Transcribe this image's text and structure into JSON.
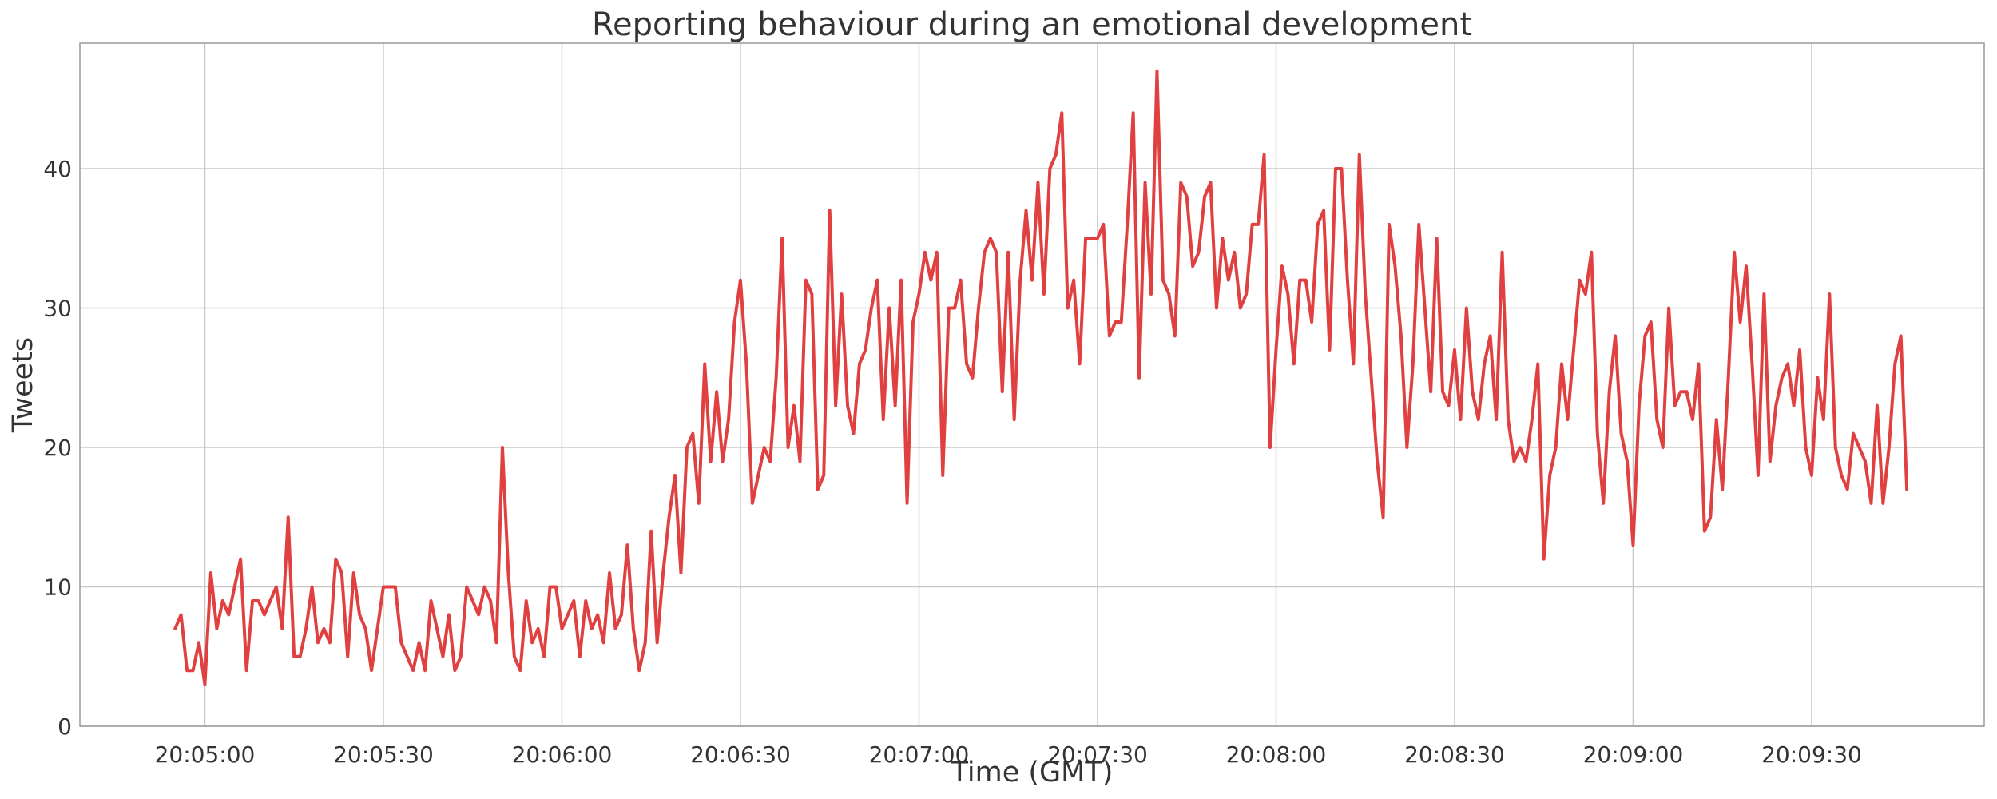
{
  "chart_data": {
    "type": "line",
    "title": "Reporting behaviour during an emotional development",
    "xlabel": "Time (GMT)",
    "ylabel": "Tweets",
    "ylim": [
      0,
      49
    ],
    "xlim": [
      "20:04:39",
      "20:09:59"
    ],
    "x_start": "20:04:55",
    "x_step_seconds": 1,
    "grid": true,
    "series_color": "#e04040",
    "xticks": [
      {
        "t": "20:05:00",
        "label": "20:05:00"
      },
      {
        "t": "20:05:30",
        "label": "20:05:30"
      },
      {
        "t": "20:06:00",
        "label": "20:06:00"
      },
      {
        "t": "20:06:30",
        "label": "20:06:30"
      },
      {
        "t": "20:07:00",
        "label": "20:07:00"
      },
      {
        "t": "20:07:30",
        "label": "20:07:30"
      },
      {
        "t": "20:08:00",
        "label": "20:08:00"
      },
      {
        "t": "20:08:30",
        "label": "20:08:30"
      },
      {
        "t": "20:09:00",
        "label": "20:09:00"
      },
      {
        "t": "20:09:30",
        "label": "20:09:30"
      }
    ],
    "yticks": [
      {
        "v": 0,
        "label": "0"
      },
      {
        "v": 10,
        "label": "10"
      },
      {
        "v": 20,
        "label": "20"
      },
      {
        "v": 30,
        "label": "30"
      },
      {
        "v": 40,
        "label": "40"
      }
    ],
    "series": [
      {
        "values": [
          7,
          8,
          4,
          4,
          6,
          3,
          11,
          7,
          9,
          8,
          10,
          12,
          4,
          9,
          9,
          8,
          9,
          10,
          7,
          15,
          5,
          5,
          7,
          10,
          6,
          7,
          6,
          12,
          11,
          5,
          11,
          8,
          7,
          4,
          7,
          10,
          10,
          10,
          6,
          5,
          4,
          6,
          4,
          9,
          7,
          5,
          8,
          4,
          5,
          10,
          9,
          8,
          10,
          9,
          6,
          20,
          11,
          5,
          4,
          9,
          6,
          7,
          5,
          10,
          10,
          7,
          8,
          9,
          5,
          9,
          7,
          8,
          6,
          11,
          7,
          8,
          13,
          7,
          4,
          6,
          14,
          6,
          11,
          15,
          18,
          11,
          20,
          21,
          16,
          26,
          19,
          24,
          19,
          22,
          29,
          32,
          26,
          16,
          18,
          20,
          19,
          25,
          35,
          20,
          23,
          19,
          32,
          31,
          17,
          18,
          37,
          23,
          31,
          23,
          21,
          26,
          27,
          30,
          32,
          22,
          30,
          23,
          32,
          16,
          29,
          31,
          34,
          32,
          34,
          18,
          30,
          30,
          32,
          26,
          25,
          30,
          34,
          35,
          34,
          24,
          34,
          22,
          32,
          37,
          32,
          39,
          31,
          40,
          41,
          44,
          30,
          32,
          26,
          35,
          35,
          35,
          36,
          28,
          29,
          29,
          36,
          44,
          25,
          39,
          31,
          47,
          32,
          31,
          28,
          39,
          38,
          33,
          34,
          38,
          39,
          30,
          35,
          32,
          34,
          30,
          31,
          36,
          36,
          41,
          20,
          27,
          33,
          31,
          26,
          32,
          32,
          29,
          36,
          37,
          27,
          40,
          40,
          32,
          26,
          41,
          31,
          25,
          19,
          15,
          36,
          33,
          28,
          20,
          26,
          36,
          30,
          24,
          35,
          24,
          23,
          27,
          22,
          30,
          24,
          22,
          26,
          28,
          22,
          34,
          22,
          19,
          20,
          19,
          22,
          26,
          12,
          18,
          20,
          26,
          22,
          27,
          32,
          31,
          34,
          21,
          16,
          24,
          28,
          21,
          19,
          13,
          23,
          28,
          29,
          22,
          20,
          30,
          23,
          24,
          24,
          22,
          26,
          14,
          15,
          22,
          17,
          25,
          34,
          29,
          33,
          26,
          18,
          31,
          19,
          23,
          25,
          26,
          23,
          27,
          20,
          18,
          25,
          22,
          31,
          20,
          18,
          17,
          21,
          20,
          19,
          16,
          23,
          16,
          20,
          26,
          28,
          17
        ]
      }
    ]
  }
}
